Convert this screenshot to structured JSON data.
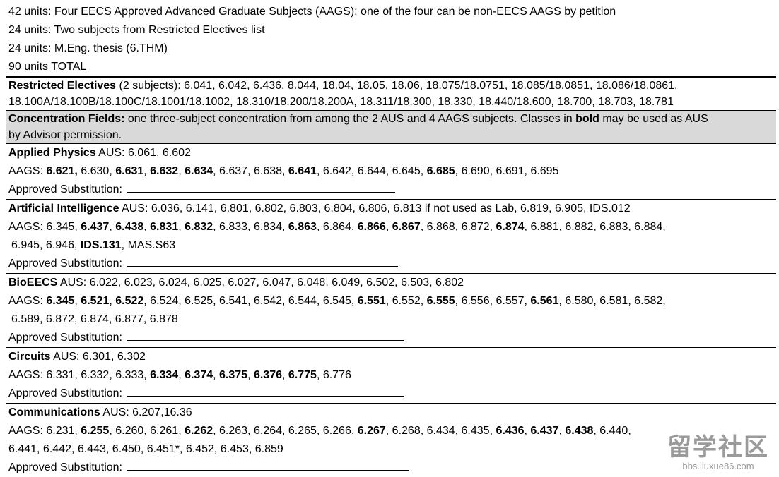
{
  "top_lines": [
    "42 units: Four EECS Approved Advanced Graduate Subjects (AAGS); one of the four can be non-EECS AAGS by petition",
    "24 units: Two subjects from Restricted Electives list",
    "24 units: M.Eng. thesis (6.THM)",
    "90 units TOTAL"
  ],
  "sections": [
    {
      "id": "restricted",
      "cls": "restricted thick",
      "lines": [
        [
          {
            "t": "Restricted Electives",
            "b": true
          },
          {
            "t": " (2 subjects): 6.041, 6.042, 6.436, 8.044, 18.04, 18.05, 18.06, 18.075/18.0751, 18.085/18.0851, 18.086/18.0861,"
          }
        ],
        [
          {
            "t": "18.100A/18.100B/18.100C/18.1001/18.1002, 18.310/18.200/18.200A, 18.311/18.300, 18.330, 18.440/18.600, 18.700, 18.703, 18.781"
          }
        ]
      ]
    },
    {
      "id": "concentration",
      "cls": "conc",
      "lines": [
        [
          {
            "t": "Concentration Fields:",
            "b": true
          },
          {
            "t": " one three-subject concentration from among the 2 AUS and 4 AAGS subjects.  Classes in "
          },
          {
            "t": "bold",
            "b": true
          },
          {
            "t": " may be used as AUS"
          }
        ],
        [
          {
            "t": "by Advisor permission."
          }
        ]
      ]
    },
    {
      "id": "applied-physics",
      "lines": [
        [
          {
            "t": "Applied Physics",
            "b": true
          },
          {
            "t": "  AUS:  6.061, 6.602"
          }
        ],
        [
          {
            "t": "AAGS: "
          },
          {
            "t": "6.621,",
            "b": true
          },
          {
            "t": " 6.630, "
          },
          {
            "t": "6.631",
            "b": true
          },
          {
            "t": ", "
          },
          {
            "t": "6.632",
            "b": true
          },
          {
            "t": ", "
          },
          {
            "t": "6.634",
            "b": true
          },
          {
            "t": ", 6.637, 6.638, "
          },
          {
            "t": "6.641",
            "b": true
          },
          {
            "t": ", 6.642, 6.644, 6.645, "
          },
          {
            "t": "6.685",
            "b": true
          },
          {
            "t": ", 6.690, 6.691, 6.695"
          }
        ],
        [
          {
            "t": "Approved Substitution:",
            "sub": 380
          }
        ]
      ]
    },
    {
      "id": "artificial-intelligence",
      "lines": [
        [
          {
            "t": "Artificial Intelligence",
            "b": true
          },
          {
            "t": "  AUS: 6.036, 6.141, 6.801, 6.802, 6.803, 6.804, 6.806, 6.813 if not used as Lab, 6.819, 6.905, IDS.012"
          }
        ],
        [
          {
            "t": "AAGS: 6.345, "
          },
          {
            "t": "6.437",
            "b": true
          },
          {
            "t": ", "
          },
          {
            "t": "6.438",
            "b": true
          },
          {
            "t": ", "
          },
          {
            "t": "6.831",
            "b": true
          },
          {
            "t": ", "
          },
          {
            "t": "6.832",
            "b": true
          },
          {
            "t": ", 6.833, 6.834, "
          },
          {
            "t": "6.863",
            "b": true
          },
          {
            "t": ", 6.864, "
          },
          {
            "t": "6.866",
            "b": true
          },
          {
            "t": ", "
          },
          {
            "t": "6.867",
            "b": true
          },
          {
            "t": ", 6.868, 6.872, "
          },
          {
            "t": "6.874",
            "b": true
          },
          {
            "t": ", 6.881, 6.882, 6.883, 6.884,"
          }
        ],
        [
          {
            "t": "6.945, 6.946, ",
            "ind": true
          },
          {
            "t": "IDS.131",
            "b": true
          },
          {
            "t": ", MAS.S63"
          }
        ],
        [
          {
            "t": "Approved Substitution:",
            "sub": 384
          }
        ]
      ]
    },
    {
      "id": "bioeecs",
      "lines": [
        [
          {
            "t": "BioEECS",
            "b": true
          },
          {
            "t": "  AUS: 6.022, 6.023, 6.024, 6.025, 6.027, 6.047, 6.048, 6.049, 6.502, 6.503, 6.802"
          }
        ],
        [
          {
            "t": "AAGS: "
          },
          {
            "t": "6.345",
            "b": true
          },
          {
            "t": ", "
          },
          {
            "t": "6.521",
            "b": true
          },
          {
            "t": ", "
          },
          {
            "t": "6.522",
            "b": true
          },
          {
            "t": ", 6.524, 6.525, 6.541, 6.542, 6.544, 6.545, "
          },
          {
            "t": "6.551",
            "b": true
          },
          {
            "t": ", 6.552, "
          },
          {
            "t": "6.555",
            "b": true
          },
          {
            "t": ", 6.556, 6.557, "
          },
          {
            "t": "6.561",
            "b": true
          },
          {
            "t": ", 6.580, 6.581, 6.582,"
          }
        ],
        [
          {
            "t": "6.589, 6.872, 6.874, 6.877, 6.878",
            "ind": true
          }
        ],
        [
          {
            "t": "Approved Substitution:",
            "sub": 392
          }
        ]
      ]
    },
    {
      "id": "circuits",
      "lines": [
        [
          {
            "t": "Circuits",
            "b": true
          },
          {
            "t": "  AUS: 6.301, 6.302"
          }
        ],
        [
          {
            "t": "AAGS: 6.331, 6.332, 6.333, "
          },
          {
            "t": "6.334",
            "b": true
          },
          {
            "t": ", "
          },
          {
            "t": "6.374",
            "b": true
          },
          {
            "t": ", "
          },
          {
            "t": "6.375",
            "b": true
          },
          {
            "t": ", "
          },
          {
            "t": "6.376",
            "b": true
          },
          {
            "t": ", "
          },
          {
            "t": "6.775",
            "b": true
          },
          {
            "t": ", 6.776"
          }
        ],
        [
          {
            "t": "Approved Substitution:",
            "sub": 392
          }
        ]
      ]
    },
    {
      "id": "communications",
      "lines": [
        [
          {
            "t": "Communications",
            "b": true
          },
          {
            "t": "  AUS: 6.207,16.36"
          }
        ],
        [
          {
            "t": "AAGS: 6.231, "
          },
          {
            "t": "6.255",
            "b": true
          },
          {
            "t": ", 6.260, 6.261, "
          },
          {
            "t": "6.262",
            "b": true
          },
          {
            "t": ", 6.263, 6.264, 6.265, 6.266, "
          },
          {
            "t": "6.267",
            "b": true
          },
          {
            "t": ", 6.268, 6.434, 6.435, "
          },
          {
            "t": "6.436",
            "b": true
          },
          {
            "t": ", "
          },
          {
            "t": "6.437",
            "b": true
          },
          {
            "t": ", "
          },
          {
            "t": "6.438",
            "b": true
          },
          {
            "t": ", 6.440,"
          }
        ],
        [
          {
            "t": "6.441, 6.442, 6.443, 6.450, 6.451*, 6.452, 6.453, 6.859"
          }
        ],
        [
          {
            "t": "Approved Substitution:",
            "sub": 400
          }
        ]
      ]
    }
  ],
  "watermark": {
    "main": "留学社区",
    "sub": "bbs.liuxue86.com"
  }
}
